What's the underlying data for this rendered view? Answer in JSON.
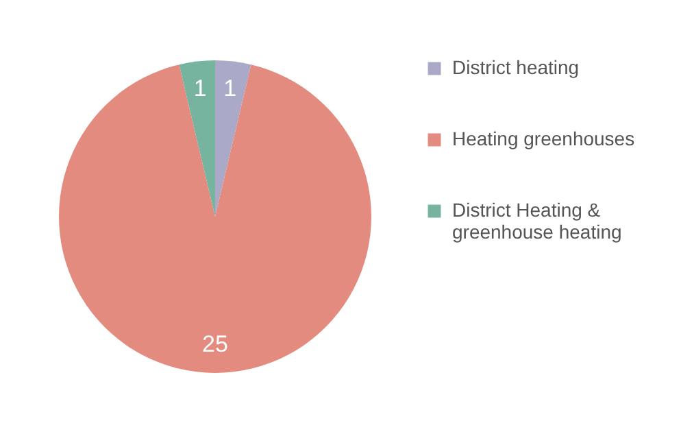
{
  "chart_data": {
    "type": "pie",
    "categories": [
      "District heating",
      "Heating greenhouses",
      "District Heating & greenhouse heating"
    ],
    "values": [
      1,
      25,
      1
    ],
    "colors": [
      "#aaa9c8",
      "#e48b7f",
      "#76b4a0"
    ],
    "data_labels": true,
    "legend": "right"
  }
}
